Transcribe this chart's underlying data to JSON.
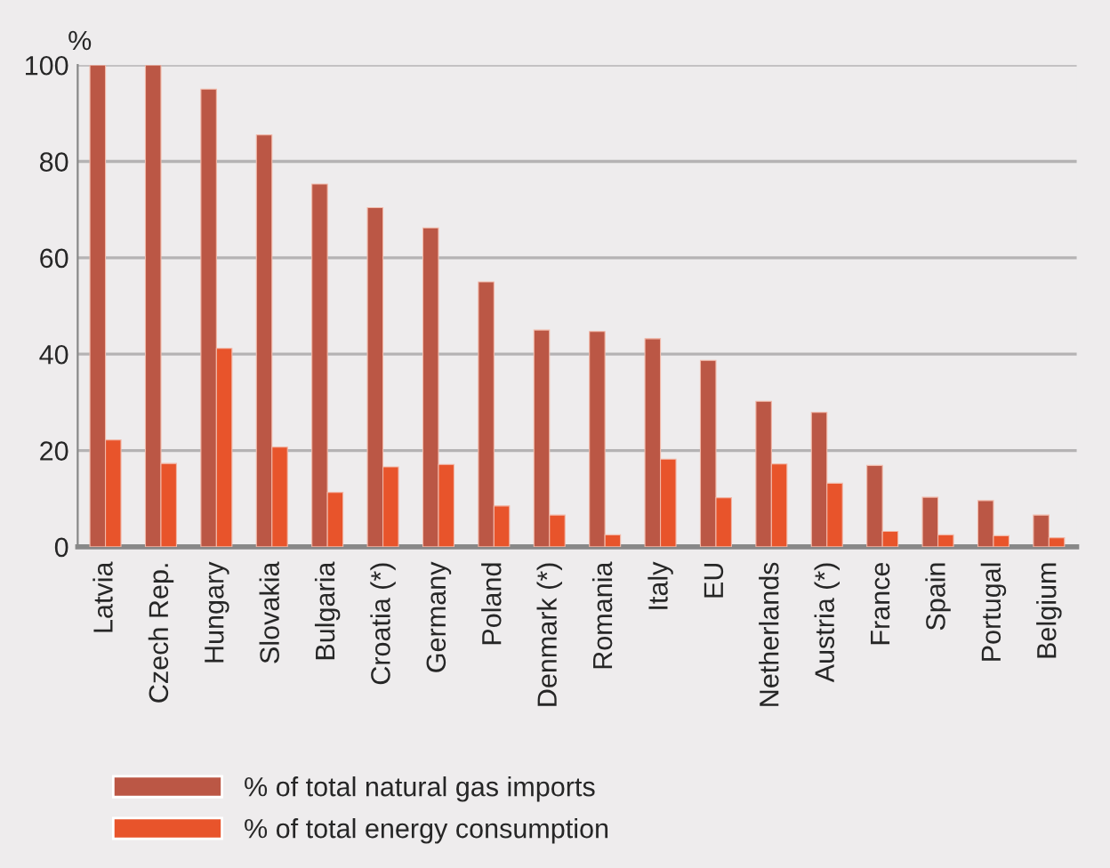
{
  "chart_data": {
    "type": "bar",
    "ylabel": "%",
    "categories": [
      "Latvia",
      "Czech Rep.",
      "Hungary",
      "Slovakia",
      "Bulgaria",
      "Croatia (*)",
      "Germany",
      "Poland",
      "Denmark (*)",
      "Romania",
      "Italy",
      "EU",
      "Netherlands",
      "Austria (*)",
      "France",
      "Spain",
      "Portugal",
      "Belgium"
    ],
    "series": [
      {
        "name": "% of total natural gas imports",
        "color": "#bb5745",
        "values": [
          100,
          100,
          95,
          85.5,
          75.3,
          70.4,
          66.2,
          55,
          45,
          44.7,
          43.2,
          38.7,
          30.2,
          27.9,
          16.9,
          10.3,
          9.6,
          6.6
        ]
      },
      {
        "name": "% of total energy consumption",
        "color": "#e8542b",
        "values": [
          22.2,
          17.3,
          41.2,
          20.7,
          11.3,
          16.6,
          17.1,
          8.5,
          6.6,
          2.5,
          18.2,
          10.2,
          17.2,
          13.2,
          3.2,
          2.5,
          2.3,
          1.9
        ]
      }
    ],
    "ylim": [
      0,
      100
    ],
    "yticks": [
      0,
      20,
      40,
      60,
      80,
      100
    ],
    "grid": "y",
    "legend": "bottom left"
  }
}
